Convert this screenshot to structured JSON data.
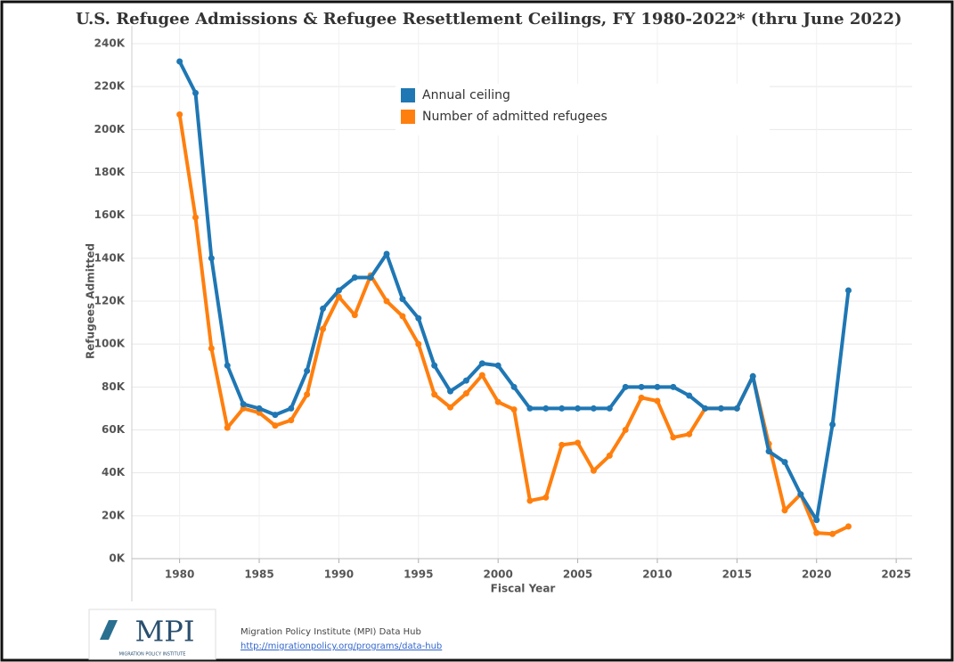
{
  "chart_data": {
    "type": "line",
    "title": "U.S. Refugee Admissions & Refugee Resettlement Ceilings, FY 1980-2022* (thru June 2022)",
    "x_label": "Fiscal Year",
    "y_label": "Refugees Admitted",
    "x": [
      1980,
      1981,
      1982,
      1983,
      1984,
      1985,
      1986,
      1987,
      1988,
      1989,
      1990,
      1991,
      1992,
      1993,
      1994,
      1995,
      1996,
      1997,
      1998,
      1999,
      2000,
      2001,
      2002,
      2003,
      2004,
      2005,
      2006,
      2007,
      2008,
      2009,
      2010,
      2011,
      2012,
      2013,
      2014,
      2015,
      2016,
      2017,
      2018,
      2019,
      2020,
      2021,
      2022
    ],
    "series": [
      {
        "name": "Annual ceiling",
        "color": "#1f77b4",
        "values": [
          231700,
          217000,
          140000,
          90000,
          72000,
          70000,
          67000,
          70000,
          87500,
          116500,
          125000,
          131000,
          131000,
          142000,
          121000,
          112000,
          90000,
          78000,
          83000,
          91000,
          90000,
          80000,
          70000,
          70000,
          70000,
          70000,
          70000,
          70000,
          80000,
          80000,
          80000,
          80000,
          76000,
          70000,
          70000,
          70000,
          85000,
          50000,
          45000,
          30000,
          18000,
          62500,
          125000
        ]
      },
      {
        "name": "Number of admitted refugees",
        "color": "#ff7f0e",
        "values": [
          207000,
          159000,
          98000,
          61000,
          70000,
          68000,
          62000,
          64500,
          76500,
          107000,
          122000,
          113500,
          132000,
          120000,
          113000,
          100000,
          76500,
          70500,
          77000,
          85500,
          73000,
          69500,
          27000,
          28500,
          53000,
          54000,
          41000,
          48000,
          60000,
          75000,
          73500,
          56500,
          58000,
          70000,
          70000,
          70000,
          85000,
          53500,
          22500,
          30000,
          12000,
          11500,
          15000
        ]
      }
    ],
    "xlim": [
      1977,
      2026
    ],
    "xticks": [
      1980,
      1985,
      1990,
      1995,
      2000,
      2005,
      2010,
      2015,
      2020,
      2025
    ],
    "ylim": [
      0,
      240000
    ],
    "yticks": [
      {
        "value": 0,
        "label": "0K"
      },
      {
        "value": 20000,
        "label": "20K"
      },
      {
        "value": 40000,
        "label": "40K"
      },
      {
        "value": 60000,
        "label": "60K"
      },
      {
        "value": 80000,
        "label": "80K"
      },
      {
        "value": 100000,
        "label": "100K"
      },
      {
        "value": 120000,
        "label": "120K"
      },
      {
        "value": 140000,
        "label": "140K"
      },
      {
        "value": 160000,
        "label": "160K"
      },
      {
        "value": 180000,
        "label": "180K"
      },
      {
        "value": 200000,
        "label": "200K"
      },
      {
        "value": 220000,
        "label": "220K"
      },
      {
        "value": 240000,
        "label": "240K"
      }
    ],
    "grid": true,
    "legend": "top"
  },
  "footer": {
    "logo": "MPI",
    "logo_subtitle": "MIGRATION POLICY INSTITUTE",
    "source": "Migration Policy Institute (MPI) Data Hub",
    "url": "http://migrationpolicy.org/programs/data-hub"
  }
}
